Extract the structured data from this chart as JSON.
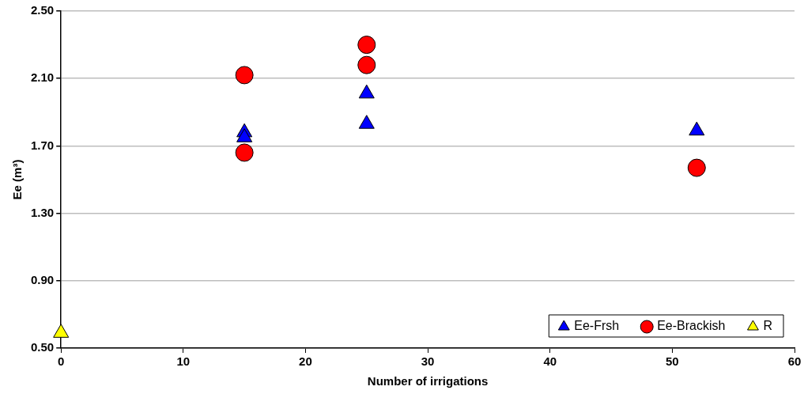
{
  "chart_data": {
    "type": "scatter",
    "xlabel": "Number of irrigations",
    "ylabel": "Ee (m³)",
    "xlim": [
      0,
      60
    ],
    "xticks": [
      0,
      10,
      20,
      30,
      40,
      50,
      60
    ],
    "ylim": [
      0.5,
      2.5
    ],
    "yticks": [
      {
        "value": 0.5,
        "label": "0.50"
      },
      {
        "value": 0.9,
        "label": "0.90"
      },
      {
        "value": 1.3,
        "label": "1.30"
      },
      {
        "value": 1.7,
        "label": "1.70"
      },
      {
        "value": 2.1,
        "label": "2.10"
      },
      {
        "value": 2.5,
        "label": "2.50"
      }
    ],
    "grid": "y",
    "legend": "bottom right",
    "series": [
      {
        "name": "Ee-Frsh",
        "color": "#0000ff",
        "marker": "triangle",
        "x": [
          15,
          15,
          25,
          25,
          52
        ],
        "values": [
          1.78,
          1.75,
          2.01,
          1.83,
          1.79
        ]
      },
      {
        "name": "Ee-Brackish",
        "color": "#ff0000",
        "marker": "circle",
        "x": [
          15,
          15,
          25,
          25,
          52
        ],
        "values": [
          2.12,
          1.66,
          2.3,
          2.18,
          1.57
        ]
      },
      {
        "name": "R",
        "color": "#ffff00",
        "marker": "triangle",
        "x": [
          0
        ],
        "values": [
          0.59
        ]
      }
    ]
  }
}
